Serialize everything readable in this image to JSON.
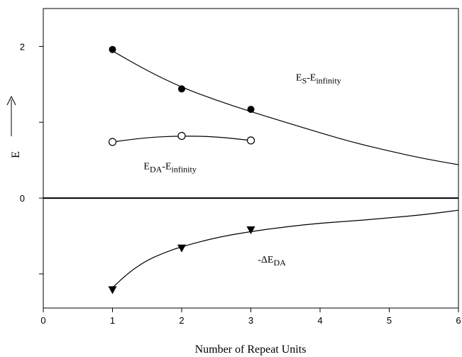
{
  "chart_data": {
    "type": "scatter",
    "xlabel": "Number of Repeat Units",
    "ylabel": "E",
    "xlim": [
      0,
      6
    ],
    "ylim": [
      -1.45,
      2.5
    ],
    "x_ticks": [
      "0",
      "1",
      "2",
      "3",
      "4",
      "5",
      "6"
    ],
    "y_ticks": [
      "0",
      "2"
    ],
    "y_tick_values": [
      0,
      2
    ],
    "y_minor_ticks": [
      -1,
      1
    ],
    "grid": false,
    "zero_line": true,
    "series": [
      {
        "marker": "filled-circle",
        "x": [
          1,
          2,
          3
        ],
        "y": [
          1.96,
          1.44,
          1.17
        ],
        "fit_curve": {
          "x": [
            1,
            1.5,
            2,
            2.5,
            3,
            3.5,
            4,
            4.5,
            5,
            5.5,
            6
          ],
          "y": [
            1.94,
            1.68,
            1.46,
            1.29,
            1.14,
            1.0,
            0.86,
            0.73,
            0.62,
            0.52,
            0.44
          ]
        }
      },
      {
        "marker": "open-circle",
        "x": [
          1,
          2,
          3
        ],
        "y": [
          0.74,
          0.82,
          0.76
        ],
        "fit_curve": {
          "x": [
            1,
            1.5,
            2,
            2.5,
            3
          ],
          "y": [
            0.74,
            0.8,
            0.82,
            0.81,
            0.76
          ]
        }
      },
      {
        "marker": "filled-triangle-down",
        "x": [
          1,
          2,
          3
        ],
        "y": [
          -1.21,
          -0.66,
          -0.42
        ],
        "fit_curve": {
          "x": [
            1,
            1.25,
            1.5,
            1.75,
            2,
            2.5,
            3,
            3.5,
            4,
            4.5,
            5,
            5.5,
            6
          ],
          "y": [
            -1.18,
            -0.97,
            -0.82,
            -0.72,
            -0.64,
            -0.52,
            -0.44,
            -0.38,
            -0.33,
            -0.3,
            -0.26,
            -0.22,
            -0.16
          ]
        }
      }
    ],
    "annotations": [
      {
        "main": "E",
        "sub": "S",
        "rest": "-E",
        "rest_sub": "infinity",
        "x": 3.65,
        "y": 1.55
      },
      {
        "main": "E",
        "sub": "DA",
        "rest": "-E",
        "rest_sub": "infinity",
        "x": 1.45,
        "y": 0.38
      },
      {
        "main": "-ΔE",
        "sub": "DA",
        "rest": "",
        "rest_sub": "",
        "x": 3.1,
        "y": -0.85
      }
    ]
  }
}
